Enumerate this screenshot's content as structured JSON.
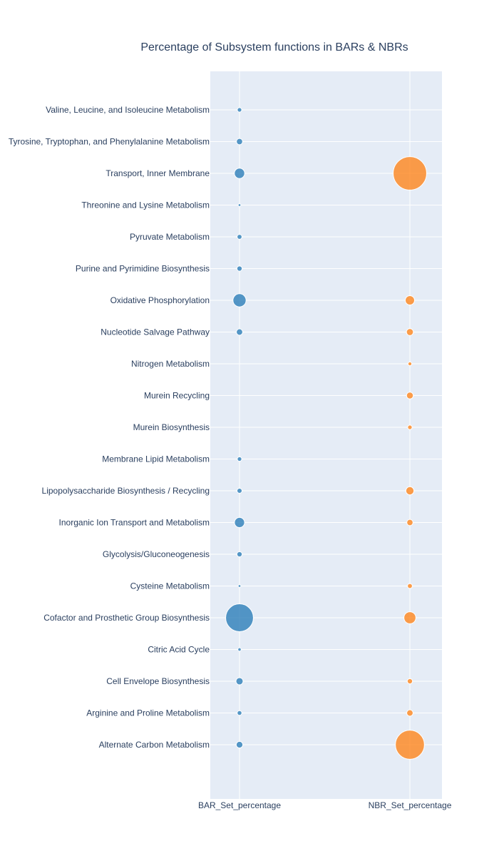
{
  "chart_data": {
    "type": "scatter",
    "title": "Percentage of Subsystem functions in BARs & NBRs",
    "x_categories": [
      "BAR_Set_percentage",
      "NBR_Set_percentage"
    ],
    "y_categories": [
      "Alternate Carbon Metabolism",
      "Arginine and Proline Metabolism",
      "Cell Envelope Biosynthesis",
      "Citric Acid Cycle",
      "Cofactor and Prosthetic Group Biosynthesis",
      "Cysteine Metabolism",
      "Glycolysis/Gluconeogenesis",
      "Inorganic Ion Transport and Metabolism",
      "Lipopolysaccharide Biosynthesis / Recycling",
      "Membrane Lipid Metabolism",
      "Murein Biosynthesis",
      "Murein Recycling",
      "Nitrogen Metabolism",
      "Nucleotide Salvage Pathway",
      "Oxidative Phosphorylation",
      "Purine and Pyrimidine Biosynthesis",
      "Pyruvate Metabolism",
      "Threonine and Lysine Metabolism",
      "Transport, Inner Membrane",
      "Tyrosine, Tryptophan, and Phenylalanine Metabolism",
      "Valine, Leucine, and Isoleucine Metabolism"
    ],
    "series": [
      {
        "x": "BAR_Set_percentage",
        "color": "#1f77b4",
        "values": [
          2.4,
          1.2,
          2.8,
          0.6,
          42,
          0.4,
          1.5,
          5.6,
          1.4,
          1.1,
          0,
          0,
          0,
          2.2,
          9.4,
          1.5,
          1.3,
          0.4,
          5.8,
          2.1,
          1.1
        ]
      },
      {
        "x": "NBR_Set_percentage",
        "color": "#ff7f0e",
        "values": [
          46,
          2.2,
          1.5,
          0,
          7.8,
          1.3,
          0,
          2.1,
          3.6,
          0,
          1.1,
          2.5,
          0.8,
          2.6,
          4.7,
          0,
          0,
          0,
          61,
          0,
          0
        ]
      }
    ],
    "grid": true
  }
}
